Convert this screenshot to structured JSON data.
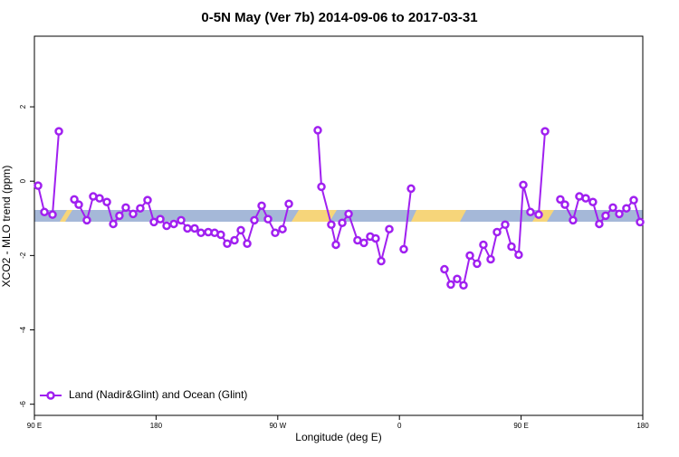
{
  "chart_data": {
    "type": "line",
    "title": "0-5N May (Ver 7b)   2014-09-06 to 2017-03-31",
    "xlabel": "Longitude (deg E)",
    "ylabel": "XCO2 - MLO trend (ppm)",
    "xlim": [
      90,
      540
    ],
    "ylim": [
      -6.3,
      3.9
    ],
    "xticks": [
      {
        "value": 90,
        "label": "90 E"
      },
      180,
      {
        "value": 270,
        "label": "90 W"
      },
      {
        "value": 360,
        "label": "0"
      },
      {
        "value": 450,
        "label": "90 E"
      },
      {
        "value": 540,
        "label": "180"
      }
    ],
    "yticks": [
      2,
      0,
      -2,
      -4,
      -6
    ],
    "legend": "bottom-left",
    "series": [
      {
        "name": "Land (Nadir&Glint) and Ocean (Glint)",
        "color": "#a020f0",
        "x": [
          92.7,
          97.4,
          103.4,
          108.1,
          null,
          119.5,
          122.8,
          128.8,
          133.5,
          138.2,
          143.6,
          148.3,
          152.9,
          157.6,
          163,
          168.3,
          173.7,
          178.4,
          183.1,
          187.8,
          193.1,
          198.5,
          203.2,
          208.5,
          213.2,
          218.6,
          223.3,
          227.9,
          232.6,
          238,
          242.7,
          247.4,
          252.7,
          258.1,
          262.8,
          268.1,
          273.5,
          278.2,
          null,
          299.6,
          302.3,
          309.6,
          313,
          317.7,
          322.4,
          329,
          333.7,
          338.4,
          342.4,
          346.5,
          352.5,
          null,
          363.2,
          368.6,
          null,
          393.3,
          398,
          402.7,
          407.4,
          412.1,
          417.4,
          422.1,
          427.5,
          432.2,
          438.2,
          442.9,
          448.2,
          451.6,
          456.9,
          463,
          467.7,
          null,
          479,
          482.4,
          488.4,
          493.1,
          497.8,
          503.1,
          507.8,
          512.5,
          517.9,
          522.6,
          527.9,
          533.3,
          538
        ],
        "values": [
          -0.12,
          -0.83,
          -0.9,
          1.34,
          null,
          -0.49,
          -0.63,
          -1.05,
          -0.41,
          -0.46,
          -0.56,
          -1.15,
          -0.93,
          -0.71,
          -0.88,
          -0.73,
          -0.51,
          -1.1,
          -1.02,
          -1.2,
          -1.15,
          -1.05,
          -1.27,
          -1.27,
          -1.39,
          -1.37,
          -1.39,
          -1.44,
          -1.68,
          -1.59,
          -1.32,
          -1.68,
          -1.05,
          -0.66,
          -1.02,
          -1.39,
          -1.29,
          -0.61,
          null,
          1.37,
          -0.15,
          -1.17,
          -1.71,
          -1.12,
          -0.88,
          -1.59,
          -1.66,
          -1.49,
          -1.54,
          -2.15,
          -1.29,
          null,
          -1.83,
          -0.2,
          null,
          -2.37,
          -2.78,
          -2.63,
          -2.8,
          -2.0,
          -2.22,
          -1.71,
          -2.1,
          -1.37,
          -1.17,
          -1.76,
          -1.98,
          -0.1,
          -0.83,
          -0.9,
          1.34,
          null,
          -0.49,
          -0.63,
          -1.05,
          -0.41,
          -0.46,
          -0.56,
          -1.15,
          -0.93,
          -0.71,
          -0.88,
          -0.73,
          -0.51,
          -1.1
        ]
      }
    ]
  }
}
